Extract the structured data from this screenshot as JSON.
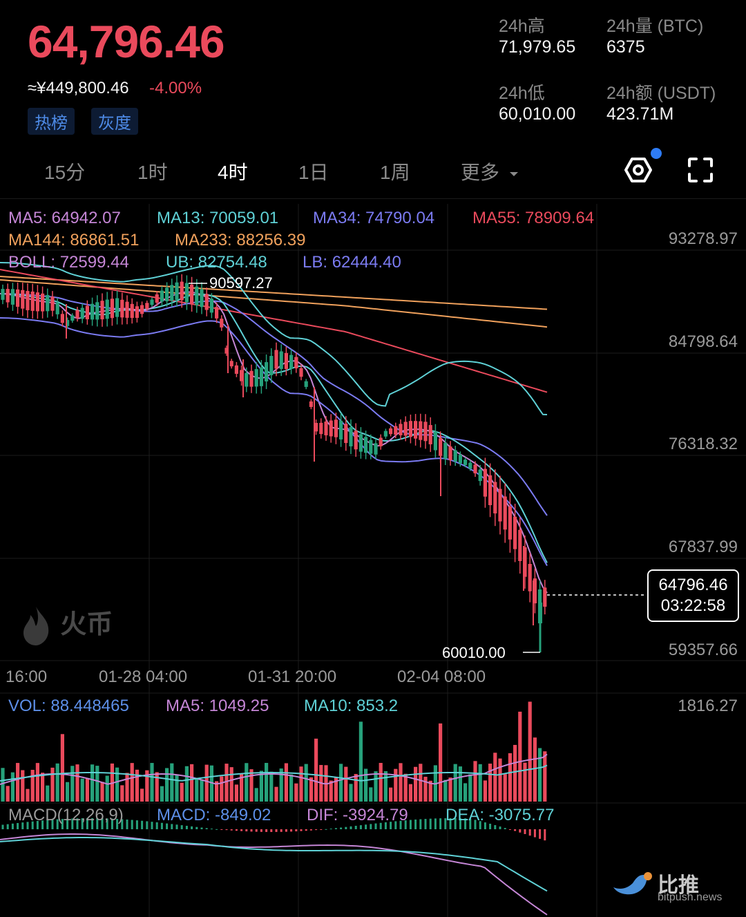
{
  "header": {
    "price": "64,796.46",
    "cny": "≈¥449,800.46",
    "change": "-4.00%",
    "tags": [
      "热榜",
      "灰度"
    ],
    "stats": [
      {
        "label": "24h高",
        "value": "71,979.65"
      },
      {
        "label": "24h量 (BTC)",
        "value": "6375"
      },
      {
        "label": "24h低",
        "value": "60,010.00"
      },
      {
        "label": "24h额 (USDT)",
        "value": "423.71M"
      }
    ]
  },
  "tabs": {
    "items": [
      "15分",
      "1时",
      "4时",
      "1日",
      "1周",
      "更多"
    ],
    "active": "4时"
  },
  "colors": {
    "up": "#26a17b",
    "down": "#ea4a5c",
    "ma5": "#c586d6",
    "ma13": "#5fd1d6",
    "ma34": "#7b7bf2",
    "ma55": "#ea4a5c",
    "ma144": "#f0a15c",
    "ma233": "#f0a15c",
    "boll": "#c586d6",
    "ub": "#5fd1d6",
    "lb": "#7b7bf2",
    "settings_dot": "#2e7cf6"
  },
  "main_chart": {
    "indicators": [
      {
        "text": "MA5: 64942.07",
        "color": "#c586d6"
      },
      {
        "text": "MA13: 70059.01",
        "color": "#5fd1d6"
      },
      {
        "text": "MA34: 74790.04",
        "color": "#7b7bf2"
      },
      {
        "text": "MA55: 78909.64",
        "color": "#ea4a5c"
      },
      {
        "text": "MA144: 86861.51",
        "color": "#f0a15c"
      },
      {
        "text": "MA233: 88256.39",
        "color": "#f0a15c"
      },
      {
        "text": "BOLL: 72599.44",
        "color": "#c586d6"
      },
      {
        "text": "UB: 82754.48",
        "color": "#5fd1d6"
      },
      {
        "text": "LB: 62444.40",
        "color": "#7b7bf2"
      }
    ],
    "y_ticks": [
      "93278.97",
      "84798.64",
      "76318.32",
      "67837.99",
      "59357.66"
    ],
    "high_marker": "90597.27",
    "low_marker": "60010.00",
    "last_price": "64796.46",
    "countdown": "03:22:58",
    "x_ticks": [
      "16:00",
      "01-28 04:00",
      "01-31 20:00",
      "02-04 08:00"
    ],
    "watermark": "火币"
  },
  "volume": {
    "indicators": [
      {
        "text": "VOL: 88.448465",
        "color": "#5d8fe8"
      },
      {
        "text": "MA5: 1049.25",
        "color": "#c586d6"
      },
      {
        "text": "MA10: 853.2",
        "color": "#5fd1d6"
      }
    ],
    "max": "1816.27"
  },
  "macd": {
    "indicators": [
      {
        "text": "MACD(12,26,9)",
        "color": "#9a9a9a"
      },
      {
        "text": "MACD: -849.02",
        "color": "#5d8fe8"
      },
      {
        "text": "DIF: -3924.79",
        "color": "#c586d6"
      },
      {
        "text": "DEA: -3075.77",
        "color": "#5fd1d6"
      }
    ]
  },
  "brand": {
    "name": "比推",
    "url": "bitpush.news"
  }
}
